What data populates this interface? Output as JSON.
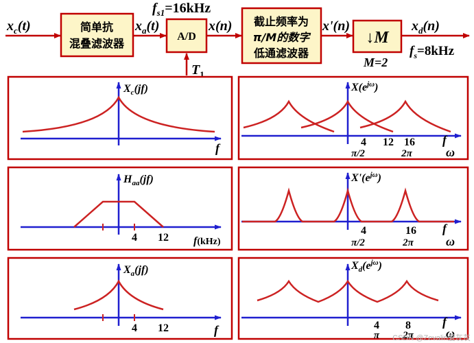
{
  "chain": {
    "input_signal": "x",
    "input_sub": "c",
    "input_arg": "(t)",
    "block1": [
      "简单抗",
      "混叠滤波器"
    ],
    "sig2": "x",
    "sig2_sub": "a",
    "sig2_arg": "(t)",
    "fs1_label": "f",
    "fs1_sub": "s1",
    "fs1_value": "=16kHz",
    "block2": "A/D",
    "clock_label": "T",
    "clock_sub": "1",
    "sig3": "x(n)",
    "block3": [
      "截止频率为",
      "π/M的数字",
      "低通滤波器"
    ],
    "sig4": "x'(n)",
    "block4_arrow": "↓",
    "block4_M": "M",
    "M_label": "M=2",
    "out_signal": "x",
    "out_sub": "d",
    "out_arg": "(n)",
    "fs_label": "f",
    "fs_sub": "s",
    "fs_value": "=8kHz"
  },
  "panels": {
    "xc": {
      "title_main": "X",
      "title_sub": "c",
      "title_arg": "(jf)",
      "xlabel": "f"
    },
    "haa": {
      "title_main": "H",
      "title_sub": "aa",
      "title_arg": "(jf)",
      "xlabel": "f",
      "xunit": "(kHz)",
      "ticks": [
        "4",
        "12"
      ]
    },
    "xa": {
      "title_main": "X",
      "title_sub": "a",
      "title_arg": "(jf)",
      "xlabel": "f",
      "ticks": [
        "4",
        "12"
      ]
    },
    "xw": {
      "title_main": "X",
      "title_arg": "(e",
      "title_sup": "jω",
      "title_end": ")",
      "xlabel_f": "f",
      "xlabel_w": "ω",
      "ticks_f": [
        "4",
        "12",
        "16"
      ],
      "ticks_w": [
        "π/2",
        "2π"
      ]
    },
    "xpw": {
      "title_main": "X'",
      "title_arg": "(e",
      "title_sup": "jω",
      "title_end": ")",
      "xlabel_f": "f",
      "xlabel_w": "ω",
      "ticks_f": [
        "4",
        "16"
      ],
      "ticks_w": [
        "π/2",
        "2π"
      ]
    },
    "xdw": {
      "title_main": "X",
      "title_sub": "d",
      "title_arg": "(e",
      "title_sup": "jω",
      "title_end": ")",
      "xlabel_f": "f",
      "xlabel_w": "ω",
      "ticks_f": [
        "4",
        "8"
      ],
      "ticks_w": [
        "π",
        "2π"
      ]
    }
  },
  "watermark": "CSDN @Zevalin爱灰灰",
  "colors": {
    "block_fill": "#fdf5c8",
    "accent": "#c00000",
    "axis": "#1f1fcf",
    "curve": "#cc2222"
  }
}
